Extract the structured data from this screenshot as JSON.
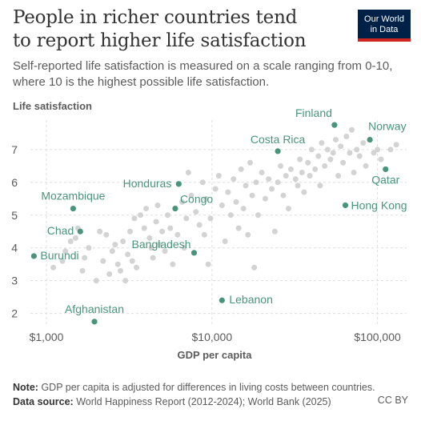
{
  "header": {
    "title_line1": "People in richer countries tend",
    "title_line2": "to report higher life satisfaction",
    "subtitle": "Self-reported life satisfaction is measured on a scale ranging from 0-10, where 10 is the highest possible life satisfaction.",
    "logo_line1": "Our World",
    "logo_line2": "in Data"
  },
  "footer": {
    "note_label": "Note:",
    "note_text": "GDP per capita is adjusted for differences in living costs between countries.",
    "source_label": "Data source:",
    "source_text": "World Happiness Report (2012-2024); World Bank (2025)",
    "license": "CC BY"
  },
  "colors": {
    "highlight": "#49957a",
    "background_points": "#d3d3d3",
    "grid": "#dddddd",
    "text": "#5b5b5b"
  },
  "chart_data": {
    "type": "scatter",
    "title": "People in richer countries tend to report higher life satisfaction",
    "xlabel": "GDP per capita",
    "ylabel": "Life satisfaction",
    "x_scale": "log",
    "xlim": [
      800,
      150000
    ],
    "ylim": [
      1.6,
      7.9
    ],
    "x_ticks": [
      1000,
      10000,
      100000
    ],
    "x_tick_labels": [
      "$1,000",
      "$10,000",
      "$100,000"
    ],
    "y_ticks": [
      2,
      3,
      4,
      5,
      6,
      7
    ],
    "y_tick_labels": [
      "2",
      "3",
      "4",
      "5",
      "6",
      "7"
    ],
    "grid": "horizontal dashed",
    "labeled_points": [
      {
        "label": "Finland",
        "x": 55000,
        "y": 7.75,
        "anchor": "end",
        "dx": -3,
        "dy": -10
      },
      {
        "label": "Norway",
        "x": 90000,
        "y": 7.3,
        "anchor": "start",
        "dx": -2,
        "dy": -12
      },
      {
        "label": "Costa Rica",
        "x": 25000,
        "y": 6.95,
        "anchor": "middle",
        "dx": 0,
        "dy": -10
      },
      {
        "label": "Qatar",
        "x": 112000,
        "y": 6.4,
        "anchor": "middle",
        "dx": 0,
        "dy": 18
      },
      {
        "label": "Honduras",
        "x": 6300,
        "y": 5.95,
        "anchor": "end",
        "dx": -9,
        "dy": 4
      },
      {
        "label": "Congo",
        "x": 6000,
        "y": 5.2,
        "anchor": "start",
        "dx": 6,
        "dy": -7
      },
      {
        "label": "Hong Kong",
        "x": 64000,
        "y": 5.3,
        "anchor": "start",
        "dx": 7,
        "dy": 5
      },
      {
        "label": "Mozambique",
        "x": 1450,
        "y": 5.2,
        "anchor": "middle",
        "dx": 0,
        "dy": -11
      },
      {
        "label": "Chad",
        "x": 1600,
        "y": 4.5,
        "anchor": "end",
        "dx": -8,
        "dy": 4
      },
      {
        "label": "Burundi",
        "x": 840,
        "y": 3.75,
        "anchor": "start",
        "dx": 8,
        "dy": 4
      },
      {
        "label": "Bangladesh",
        "x": 7800,
        "y": 3.85,
        "anchor": "end",
        "dx": -4,
        "dy": -6
      },
      {
        "label": "Lebanon",
        "x": 11500,
        "y": 2.4,
        "anchor": "start",
        "dx": 9,
        "dy": 4
      },
      {
        "label": "Afghanistan",
        "x": 1950,
        "y": 1.75,
        "anchor": "middle",
        "dx": 0,
        "dy": -11
      }
    ],
    "other_points": [
      [
        1100,
        3.4
      ],
      [
        1300,
        3.9
      ],
      [
        1400,
        4.2
      ],
      [
        1500,
        4.3
      ],
      [
        1550,
        4.6
      ],
      [
        1650,
        3.3
      ],
      [
        1700,
        3.7
      ],
      [
        1800,
        4.0
      ],
      [
        2100,
        4.5
      ],
      [
        2200,
        3.6
      ],
      [
        2300,
        4.4
      ],
      [
        2400,
        3.2
      ],
      [
        2500,
        3.9
      ],
      [
        2600,
        4.1
      ],
      [
        2700,
        3.5
      ],
      [
        2800,
        3.3
      ],
      [
        2900,
        4.2
      ],
      [
        3000,
        3.0
      ],
      [
        3100,
        3.8
      ],
      [
        3200,
        4.5
      ],
      [
        3300,
        3.6
      ],
      [
        3400,
        4.9
      ],
      [
        3500,
        3.4
      ],
      [
        3700,
        5.0
      ],
      [
        3900,
        4.6
      ],
      [
        4000,
        5.2
      ],
      [
        4200,
        4.3
      ],
      [
        4300,
        4.0
      ],
      [
        4400,
        3.7
      ],
      [
        4600,
        4.8
      ],
      [
        4700,
        5.3
      ],
      [
        4800,
        4.1
      ],
      [
        5000,
        4.5
      ],
      [
        5200,
        3.9
      ],
      [
        5400,
        5.0
      ],
      [
        5600,
        4.6
      ],
      [
        5800,
        3.5
      ],
      [
        6200,
        4.4
      ],
      [
        6600,
        5.4
      ],
      [
        7000,
        4.9
      ],
      [
        7200,
        6.3
      ],
      [
        7500,
        5.6
      ],
      [
        8000,
        5.1
      ],
      [
        8400,
        4.7
      ],
      [
        8800,
        6.0
      ],
      [
        9200,
        5.5
      ],
      [
        9500,
        3.5
      ],
      [
        9800,
        4.9
      ],
      [
        10500,
        5.8
      ],
      [
        11000,
        6.2
      ],
      [
        11500,
        5.3
      ],
      [
        12000,
        4.2
      ],
      [
        12500,
        5.7
      ],
      [
        13000,
        5.0
      ],
      [
        13500,
        6.1
      ],
      [
        14000,
        5.4
      ],
      [
        14500,
        4.6
      ],
      [
        15000,
        6.4
      ],
      [
        15500,
        5.2
      ],
      [
        16000,
        5.9
      ],
      [
        16500,
        4.4
      ],
      [
        17000,
        6.6
      ],
      [
        17500,
        5.6
      ],
      [
        18000,
        3.4
      ],
      [
        18500,
        6.0
      ],
      [
        19000,
        5.0
      ],
      [
        20000,
        6.3
      ],
      [
        21000,
        5.5
      ],
      [
        22000,
        6.1
      ],
      [
        23000,
        5.8
      ],
      [
        24000,
        4.5
      ],
      [
        25000,
        6.0
      ],
      [
        26000,
        6.5
      ],
      [
        27000,
        5.6
      ],
      [
        28000,
        6.2
      ],
      [
        29000,
        5.2
      ],
      [
        30000,
        6.4
      ],
      [
        32000,
        6.1
      ],
      [
        33000,
        5.9
      ],
      [
        34000,
        6.7
      ],
      [
        35000,
        6.3
      ],
      [
        36000,
        5.7
      ],
      [
        38000,
        6.6
      ],
      [
        39000,
        6.2
      ],
      [
        40000,
        7.0
      ],
      [
        42000,
        6.4
      ],
      [
        44000,
        6.8
      ],
      [
        45000,
        5.9
      ],
      [
        46000,
        7.2
      ],
      [
        48000,
        6.5
      ],
      [
        50000,
        7.0
      ],
      [
        52000,
        6.7
      ],
      [
        54000,
        6.9
      ],
      [
        56000,
        7.3
      ],
      [
        58000,
        6.2
      ],
      [
        60000,
        7.1
      ],
      [
        62000,
        6.6
      ],
      [
        65000,
        7.4
      ],
      [
        68000,
        6.9
      ],
      [
        70000,
        7.6
      ],
      [
        72000,
        6.3
      ],
      [
        75000,
        7.0
      ],
      [
        78000,
        6.8
      ],
      [
        82000,
        7.2
      ],
      [
        85000,
        6.5
      ],
      [
        95000,
        6.9
      ],
      [
        100000,
        7.0
      ],
      [
        105000,
        6.7
      ],
      [
        120000,
        7.0
      ],
      [
        130000,
        7.15
      ],
      [
        6800,
        4.0
      ],
      [
        9000,
        4.4
      ],
      [
        2000,
        3.0
      ],
      [
        1250,
        3.6
      ]
    ]
  }
}
